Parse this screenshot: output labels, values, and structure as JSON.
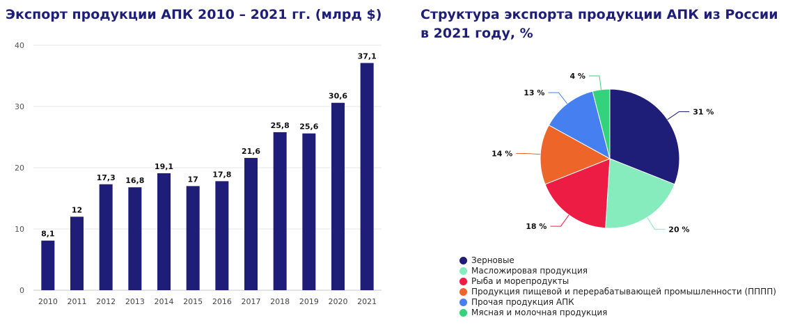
{
  "chart_data": [
    {
      "type": "bar",
      "title": "Экспорт продукции АПК 2010 – 2021 гг. (млрд $)",
      "categories": [
        "2010",
        "2011",
        "2012",
        "2013",
        "2014",
        "2015",
        "2016",
        "2017",
        "2018",
        "2019",
        "2020",
        "2021"
      ],
      "values": [
        8.1,
        12,
        17.3,
        16.8,
        19.1,
        17,
        17.8,
        21.6,
        25.8,
        25.6,
        30.6,
        37.1
      ],
      "value_labels": [
        "8,1",
        "12",
        "17,3",
        "16,8",
        "19,1",
        "17",
        "17,8",
        "21,6",
        "25,8",
        "25,6",
        "30,6",
        "37,1"
      ],
      "yticks": [
        0,
        10,
        20,
        30,
        40
      ],
      "ylim": [
        0,
        40
      ],
      "xlabel": "",
      "ylabel": "",
      "grid": true,
      "bar_color": "#1e1e78"
    },
    {
      "type": "pie",
      "title": "Структура экспорта продукции АПК из России в 2021 году, %",
      "slices": [
        {
          "label": "Зерновые",
          "value": 31,
          "value_label": "31 %",
          "color": "#1e1e78"
        },
        {
          "label": "Масложировая продукция",
          "value": 20,
          "value_label": "20 %",
          "color": "#86ebbd"
        },
        {
          "label": "Рыба и морепродукты",
          "value": 18,
          "value_label": "18 %",
          "color": "#ec1c44"
        },
        {
          "label": "Продукция пищевой и перерабатывающей промышленности (ПППП)",
          "value": 14,
          "value_label": "14 %",
          "color": "#ed6529"
        },
        {
          "label": "Прочая продукция АПК",
          "value": 13,
          "value_label": "13 %",
          "color": "#4680f0"
        },
        {
          "label": "Мясная и молочная продукция",
          "value": 4,
          "value_label": "4 %",
          "color": "#35d27d"
        }
      ],
      "legend_position": "bottom-left"
    }
  ]
}
